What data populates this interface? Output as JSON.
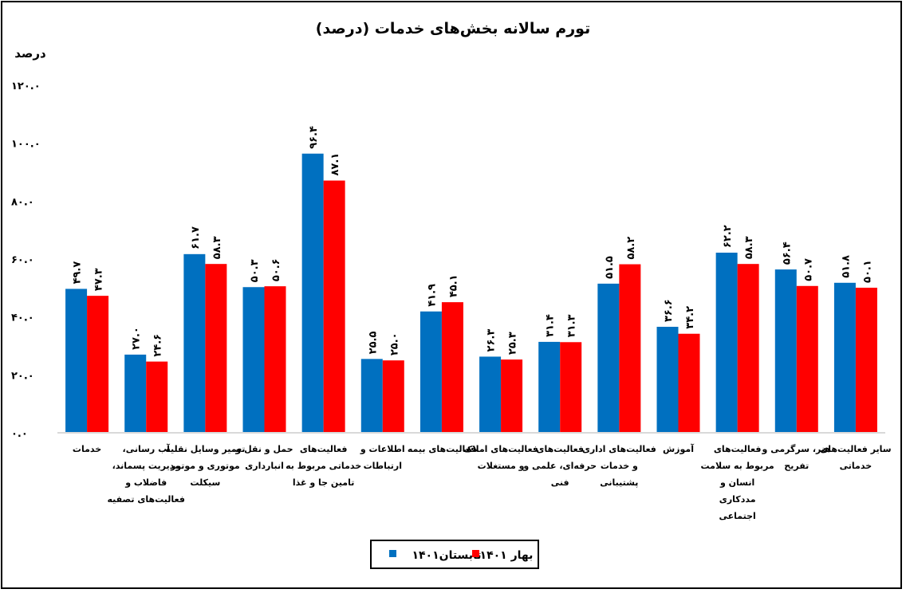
{
  "chart_data": {
    "type": "bar",
    "title": "تورم سالانه بخش‌های خدمات (درصد)",
    "ylabel": "درصد",
    "ylim": [
      0,
      120
    ],
    "yticks": [
      0,
      20,
      40,
      60,
      80,
      100,
      120
    ],
    "grid": false,
    "legend_position": "bottom",
    "categories": [
      [
        "خدمات"
      ],
      [
        "آب رسانی،",
        "مدیریت پسماند،",
        "فاضلاب و",
        "فعالیت‌های تصفیه"
      ],
      [
        "تعمیر وسایل نقلیه",
        "موتوری و موتور",
        "سیکلت"
      ],
      [
        "حمل و نقل و",
        "انبارداری"
      ],
      [
        "فعالیت‌های",
        "خدماتی مربوط به",
        "تامین جا و غذا"
      ],
      [
        "اطلاعات و",
        "ارتباطات"
      ],
      [
        "فعالیت‌های بیمه"
      ],
      [
        "فعالیت‌های املاک",
        "و مستغلات"
      ],
      [
        "فعالیت‌های",
        "حرفه‌ای، علمی و",
        "فنی"
      ],
      [
        "فعالیت‌های اداری",
        "و خدمات",
        "پشتیبانی"
      ],
      [
        "آموزش"
      ],
      [
        "فعالیت‌های",
        "مربوط به سلامت",
        "انسان و",
        "مددکاری",
        "اجتماعی"
      ],
      [
        "هنر، سرگرمی و",
        "تفریح"
      ],
      [
        "سایر فعالیت‌های",
        "خدماتی"
      ]
    ],
    "series": [
      {
        "name": "تابستان۱۴۰۱",
        "color": "#0070C0",
        "values": [
          49.7,
          27.0,
          61.7,
          50.3,
          96.4,
          25.5,
          41.9,
          26.3,
          31.4,
          51.5,
          36.6,
          62.2,
          56.4,
          51.8
        ]
      },
      {
        "name": "بهار ۱۴۰۱",
        "color": "#FF0000",
        "values": [
          47.3,
          24.6,
          58.3,
          50.6,
          87.1,
          25.0,
          45.1,
          25.3,
          31.3,
          58.2,
          34.2,
          58.3,
          50.7,
          50.1
        ]
      }
    ]
  }
}
